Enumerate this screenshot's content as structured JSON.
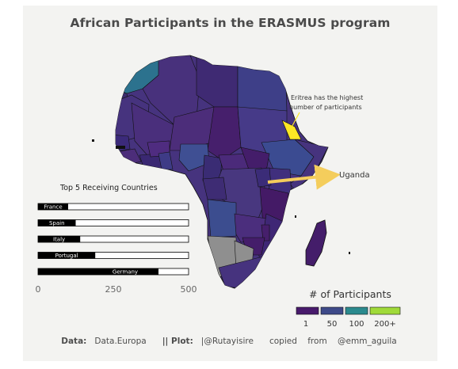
{
  "title": "African Participants in the ERASMUS program",
  "colors": {
    "background": "#f3f3f1",
    "scale": [
      "#440154",
      "#46337e",
      "#365c8d",
      "#277f8e",
      "#1fa187",
      "#4ac16d",
      "#a0da39",
      "#fde725"
    ],
    "no_data": "#8f8f8f",
    "bar_fill": "#000000",
    "bar_track": "#ffffff",
    "arrow": "#f4cd5c"
  },
  "annotations": {
    "eritrea_line1": "Eritrea has the highest",
    "eritrea_line2": "number of participants",
    "uganda": "Uganda"
  },
  "bar_panel": {
    "title": "Top 5 Receiving Countries",
    "axis_ticks": [
      "0",
      "250",
      "500"
    ]
  },
  "legend": {
    "title": "# of Participants",
    "labels": [
      "1",
      "50",
      "100",
      "200+"
    ]
  },
  "caption": {
    "data_label": "Data:",
    "data_value": "Data.Europa",
    "plot_label": "|| Plot:",
    "plot_value": "|@Rutayisire",
    "copied": "copied",
    "from": "from",
    "author": "@emm_aguila"
  },
  "chart_data": {
    "type": "bar",
    "title": "Top 5 Receiving Countries",
    "categories": [
      "France",
      "Spain",
      "Italy",
      "Portugal",
      "Germany"
    ],
    "values": [
      100,
      125,
      140,
      190,
      400
    ],
    "xlim": [
      0,
      500
    ]
  }
}
